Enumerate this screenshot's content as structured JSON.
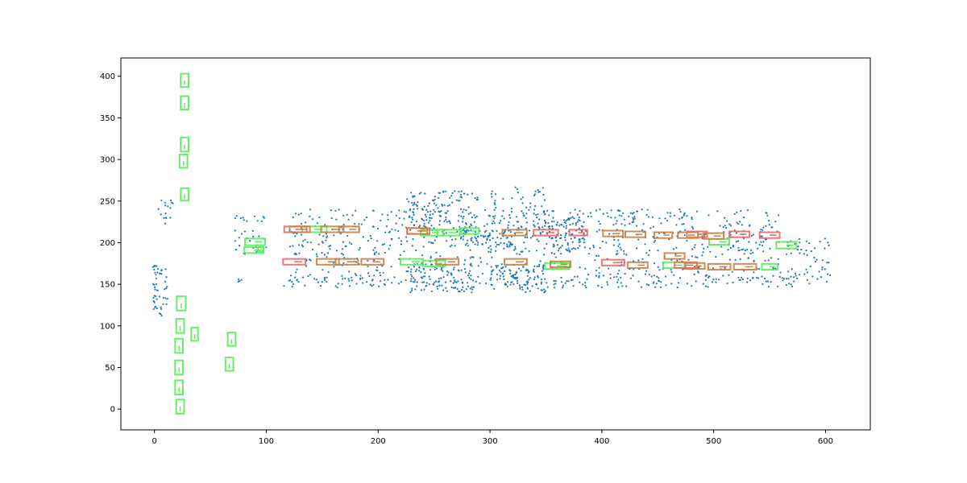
{
  "chart_data": {
    "type": "scatter",
    "title": "",
    "xlabel": "",
    "ylabel": "",
    "xlim": [
      -30,
      640
    ],
    "ylim": [
      -25,
      422
    ],
    "x_ticks": [
      0,
      100,
      200,
      300,
      400,
      500,
      600
    ],
    "y_ticks": [
      0,
      50,
      100,
      150,
      200,
      250,
      300,
      350,
      400
    ],
    "x_tick_labels": [
      "0",
      "100",
      "200",
      "300",
      "400",
      "500",
      "600"
    ],
    "y_tick_labels": [
      "0",
      "50",
      "100",
      "150",
      "200",
      "250",
      "300",
      "350",
      "400"
    ],
    "grid": false,
    "legend": "none",
    "point_color": "#1f77b4",
    "point_clusters": [
      {
        "x_range": [
          120,
          560
        ],
        "y_range": [
          226,
          240
        ],
        "count": 160
      },
      {
        "x_range": [
          120,
          560
        ],
        "y_range": [
          205,
          226
        ],
        "count": 220
      },
      {
        "x_range": [
          120,
          560
        ],
        "y_range": [
          185,
          205
        ],
        "count": 200
      },
      {
        "x_range": [
          120,
          560
        ],
        "y_range": [
          160,
          185
        ],
        "count": 200
      },
      {
        "x_range": [
          115,
          575
        ],
        "y_range": [
          146,
          160
        ],
        "count": 220
      },
      {
        "x_range": [
          225,
          290
        ],
        "y_range": [
          215,
          262
        ],
        "count": 120
      },
      {
        "x_range": [
          225,
          285
        ],
        "y_range": [
          140,
          175
        ],
        "count": 90
      },
      {
        "x_range": [
          300,
          350
        ],
        "y_range": [
          200,
          268
        ],
        "count": 80
      },
      {
        "x_range": [
          300,
          350
        ],
        "y_range": [
          140,
          175
        ],
        "count": 80
      },
      {
        "x_range": [
          265,
          320
        ],
        "y_range": [
          195,
          215
        ],
        "count": 60
      },
      {
        "x_range": [
          350,
          385
        ],
        "y_range": [
          190,
          230
        ],
        "count": 60
      },
      {
        "x_range": [
          565,
          605
        ],
        "y_range": [
          150,
          205
        ],
        "count": 60
      },
      {
        "x_range": [
          -2,
          12
        ],
        "y_range": [
          112,
          175
        ],
        "count": 50
      },
      {
        "x_range": [
          3,
          20
        ],
        "y_range": [
          222,
          252
        ],
        "count": 16
      },
      {
        "x_range": [
          70,
          100
        ],
        "y_range": [
          185,
          235
        ],
        "count": 30
      },
      {
        "x_range": [
          72,
          78
        ],
        "y_range": [
          152,
          156
        ],
        "count": 4
      }
    ],
    "box_sets": [
      {
        "color": "#55ee55",
        "boxes": [
          [
            27,
            395,
            7,
            16
          ],
          [
            27,
            368,
            7,
            16
          ],
          [
            27,
            318,
            7,
            17
          ],
          [
            26,
            298,
            7,
            16
          ],
          [
            27,
            258,
            7,
            15
          ],
          [
            24,
            127,
            8,
            17
          ],
          [
            23,
            100,
            7,
            17
          ],
          [
            22,
            76,
            7,
            17
          ],
          [
            22,
            50,
            7,
            17
          ],
          [
            22,
            26,
            7,
            17
          ],
          [
            23,
            3,
            7,
            17
          ],
          [
            36,
            90,
            6,
            16
          ],
          [
            69,
            84,
            7,
            16
          ],
          [
            67,
            54,
            7,
            16
          ],
          [
            90,
            201,
            18,
            8
          ],
          [
            89,
            191,
            17,
            7
          ],
          [
            95,
            192,
            5,
            5
          ],
          [
            143,
            216,
            22,
            7
          ],
          [
            248,
            212,
            20,
            7
          ],
          [
            263,
            212,
            20,
            7
          ],
          [
            282,
            214,
            16,
            7
          ],
          [
            230,
            177,
            20,
            7
          ],
          [
            250,
            175,
            20,
            7
          ],
          [
            360,
            172,
            22,
            7
          ],
          [
            465,
            173,
            20,
            7
          ],
          [
            505,
            201,
            18,
            7
          ],
          [
            550,
            171,
            14,
            7
          ],
          [
            565,
            197,
            18,
            8
          ]
        ]
      },
      {
        "color": "#ee6666",
        "boxes": [
          [
            126,
            216,
            20,
            7
          ],
          [
            125,
            177,
            20,
            7
          ],
          [
            235,
            214,
            18,
            7
          ],
          [
            350,
            212,
            22,
            7
          ],
          [
            379,
            212,
            16,
            7
          ],
          [
            410,
            176,
            20,
            7
          ],
          [
            485,
            210,
            18,
            7
          ],
          [
            523,
            210,
            18,
            7
          ],
          [
            550,
            209,
            18,
            7
          ],
          [
            475,
            173,
            20,
            7
          ]
        ]
      },
      {
        "color": "#c88040",
        "boxes": [
          [
            130,
            216,
            18,
            7
          ],
          [
            159,
            216,
            20,
            7
          ],
          [
            174,
            216,
            18,
            7
          ],
          [
            236,
            214,
            20,
            7
          ],
          [
            322,
            212,
            22,
            7
          ],
          [
            410,
            211,
            18,
            7
          ],
          [
            430,
            210,
            18,
            7
          ],
          [
            455,
            209,
            16,
            7
          ],
          [
            477,
            209,
            18,
            7
          ],
          [
            500,
            208,
            18,
            7
          ],
          [
            155,
            177,
            20,
            7
          ],
          [
            172,
            177,
            20,
            7
          ],
          [
            195,
            177,
            20,
            7
          ],
          [
            262,
            177,
            20,
            7
          ],
          [
            323,
            177,
            20,
            7
          ],
          [
            363,
            174,
            18,
            7
          ],
          [
            432,
            173,
            18,
            7
          ],
          [
            465,
            184,
            18,
            7
          ],
          [
            483,
            172,
            18,
            7
          ],
          [
            505,
            171,
            20,
            7
          ],
          [
            528,
            171,
            20,
            7
          ]
        ]
      }
    ]
  }
}
